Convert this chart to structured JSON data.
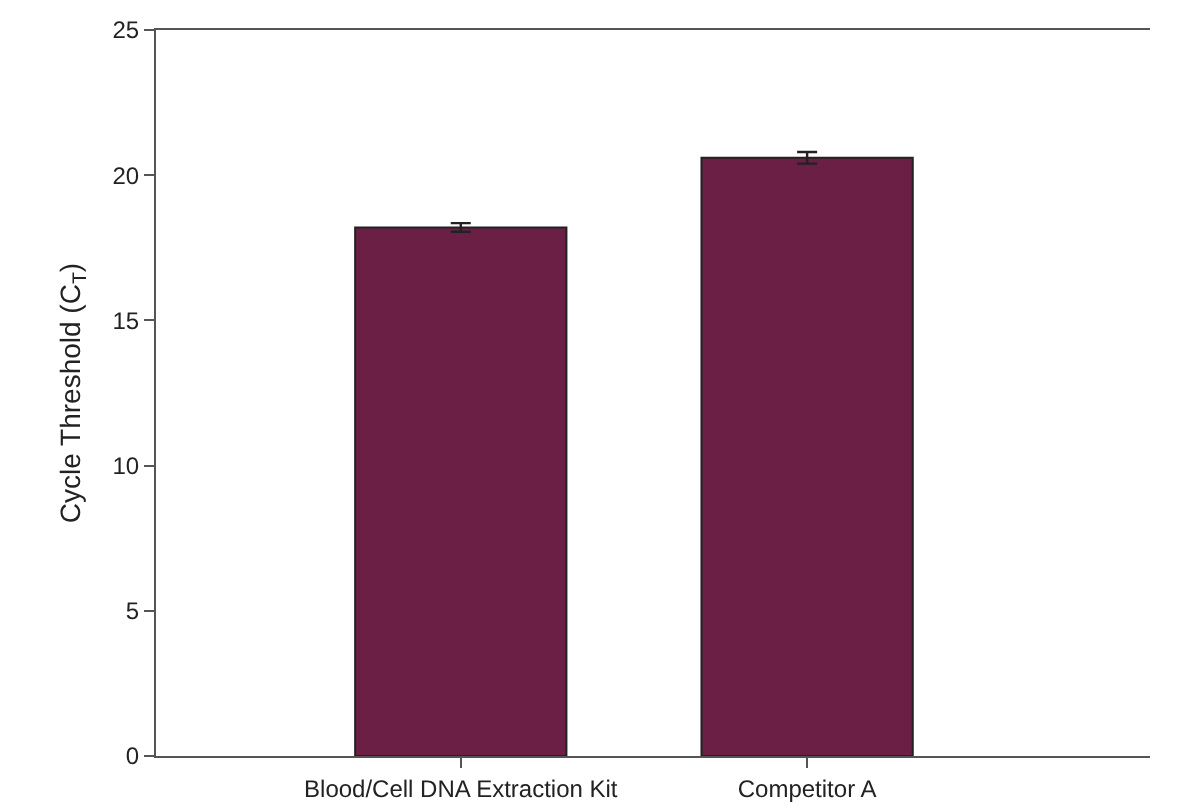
{
  "chart_data": {
    "type": "bar",
    "ylabel": "Cycle Threshold (C$_{T}$)",
    "categories": [
      "Blood/Cell DNA Extraction Kit",
      "Competitor A"
    ],
    "values": [
      18.2,
      20.6
    ],
    "errors": [
      0.15,
      0.2
    ],
    "color": "#6b1f45",
    "ylim": [
      0,
      25
    ],
    "yticks": [
      0,
      5,
      10,
      15,
      20,
      25
    ],
    "grid": false
  }
}
